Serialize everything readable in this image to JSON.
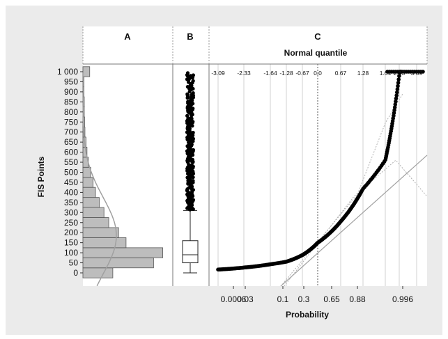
{
  "chart_data": {
    "type": "composite",
    "panels": {
      "A": {
        "label": "A",
        "type": "histogram",
        "orientation": "horizontal",
        "bins": [
          0,
          50,
          100,
          150,
          200,
          250,
          300,
          350,
          400,
          450,
          500,
          550,
          600,
          650,
          700,
          750,
          800,
          850,
          900,
          950,
          1000
        ],
        "counts": [
          88,
          208,
          235,
          127,
          105,
          76,
          62,
          48,
          37,
          30,
          23,
          16,
          12,
          9,
          6,
          5,
          4,
          4,
          3,
          3,
          20
        ],
        "normal_fit": {
          "mean": 185,
          "sd": 190
        }
      },
      "B": {
        "label": "B",
        "type": "box",
        "min": 0,
        "q1": 50,
        "median": 90,
        "q3": 160,
        "whisker_high": 310
      },
      "C": {
        "label": "C",
        "type": "normal_probability",
        "title": "Normal quantile",
        "quantile_ticks": [
          "-3.09",
          "-2.33",
          "-1.64",
          "-1.28",
          "-0.67",
          "0.0",
          "0.67",
          "1.28",
          "1.64",
          "2.33",
          "3.09"
        ],
        "probability_ticks": [
          "0.0006",
          "0.03",
          "0.1",
          "0.3",
          "0.65",
          "0.88",
          "0.996"
        ],
        "xlabel": "Probability"
      }
    },
    "ylabel": "FIS Points",
    "y_ticks": [
      "0",
      "50",
      "100",
      "150",
      "200",
      "250",
      "300",
      "350",
      "400",
      "450",
      "500",
      "550",
      "600",
      "650",
      "700",
      "750",
      "800",
      "850",
      "900",
      "950",
      "1 000"
    ],
    "ylim": [
      0,
      1000
    ],
    "grid": true,
    "colors": {
      "bars": "#bdbdbd",
      "points": "#000000",
      "fit": "#a0a0a0",
      "background": "#ffffff",
      "panel": "#ebebeb"
    }
  }
}
